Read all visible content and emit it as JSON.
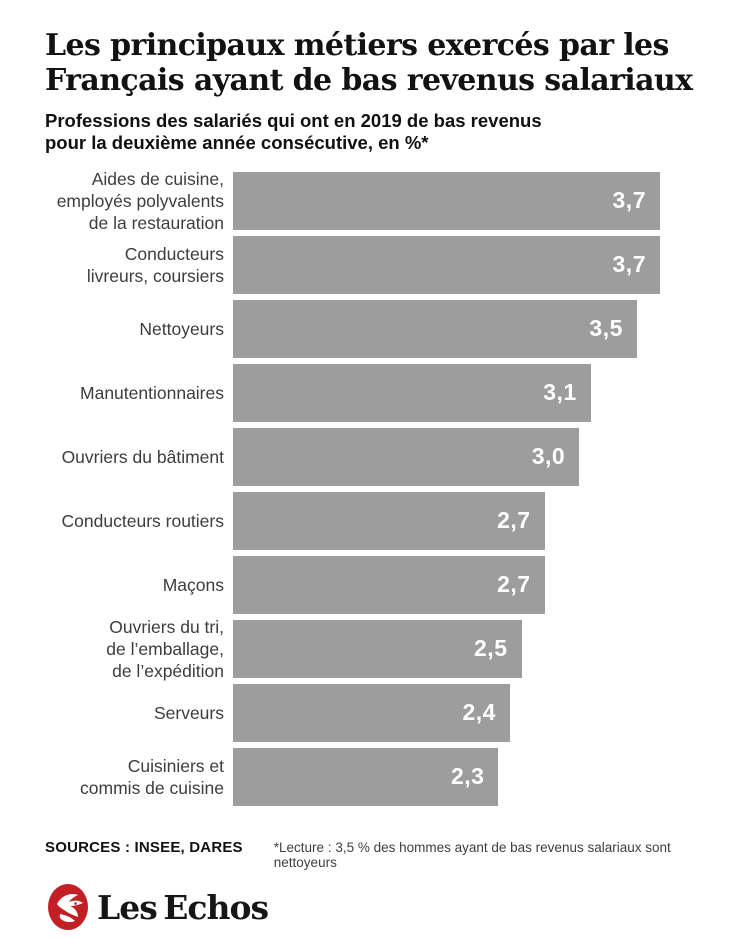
{
  "header": {
    "title": "Les principaux métiers exercés par les\nFrançais ayant de bas revenus salariaux",
    "subtitle": "Professions des salariés qui ont en 2019 de bas revenus\npour la deuxième année consécutive, en %*"
  },
  "chart_data": {
    "type": "bar",
    "orientation": "horizontal",
    "title": "Les principaux métiers exercés par les Français ayant de bas revenus salariaux",
    "subtitle": "Professions des salariés qui ont en 2019 de bas revenus pour la deuxième année consécutive, en %*",
    "xlabel": "",
    "ylabel": "",
    "xlim": [
      0,
      3.7
    ],
    "grid": false,
    "legend": false,
    "bar_color": "#9d9d9d",
    "value_label_color": "#ffffff",
    "categories": [
      "Aides de cuisine,\nemployés polyvalents\nde la restauration",
      "Conducteurs\nlivreurs, coursiers",
      "Nettoyeurs",
      "Manutentionnaires",
      "Ouvriers du bâtiment",
      "Conducteurs routiers",
      "Maçons",
      "Ouvriers du tri,\nde l’emballage,\nde l’expédition",
      "Serveurs",
      "Cuisiniers et\ncommis de cuisine"
    ],
    "values": [
      3.7,
      3.7,
      3.5,
      3.1,
      3.0,
      2.7,
      2.7,
      2.5,
      2.4,
      2.3
    ],
    "value_labels": [
      "3,7",
      "3,7",
      "3,5",
      "3,1",
      "3,0",
      "2,7",
      "2,7",
      "2,5",
      "2,4",
      "2,3"
    ]
  },
  "footer": {
    "sources": "SOURCES : INSEE, DARES",
    "note": "*Lecture : 3,5 % des hommes ayant de bas revenus salariaux sont nettoyeurs",
    "brand": "Les Echos",
    "brand_color": "#c32026"
  }
}
